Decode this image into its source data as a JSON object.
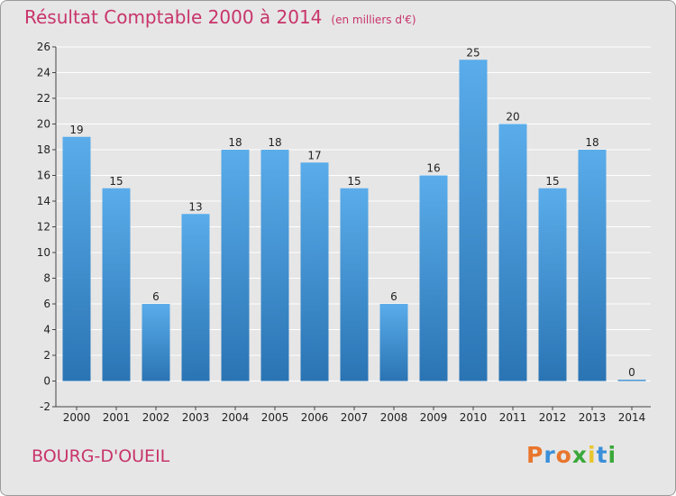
{
  "chart_data": {
    "type": "bar",
    "title": "Résultat Comptable 2000 à 2014",
    "subtitle": "(en milliers d'€)",
    "categories": [
      "2000",
      "2001",
      "2002",
      "2003",
      "2004",
      "2005",
      "2006",
      "2007",
      "2008",
      "2009",
      "2010",
      "2011",
      "2012",
      "2013",
      "2014"
    ],
    "values": [
      19,
      15,
      6,
      13,
      18,
      18,
      17,
      15,
      6,
      16,
      25,
      20,
      15,
      18,
      0
    ],
    "ylim": [
      -2,
      26
    ],
    "yticks": [
      -2,
      0,
      2,
      4,
      6,
      8,
      10,
      12,
      14,
      16,
      18,
      20,
      22,
      24,
      26
    ],
    "grid": true,
    "bar_color_top": "#5aacea",
    "bar_color_bottom": "#2a74b4"
  },
  "location": "BOURG-D'OUEIL",
  "brand": {
    "letters": [
      "P",
      "r",
      "o",
      "x",
      "i",
      "t",
      "i"
    ],
    "colors": [
      "#e8762c",
      "#3a8fd8",
      "#e8762c",
      "#3aa83a",
      "#e8c62c",
      "#3a8fd8",
      "#3aa83a"
    ]
  }
}
